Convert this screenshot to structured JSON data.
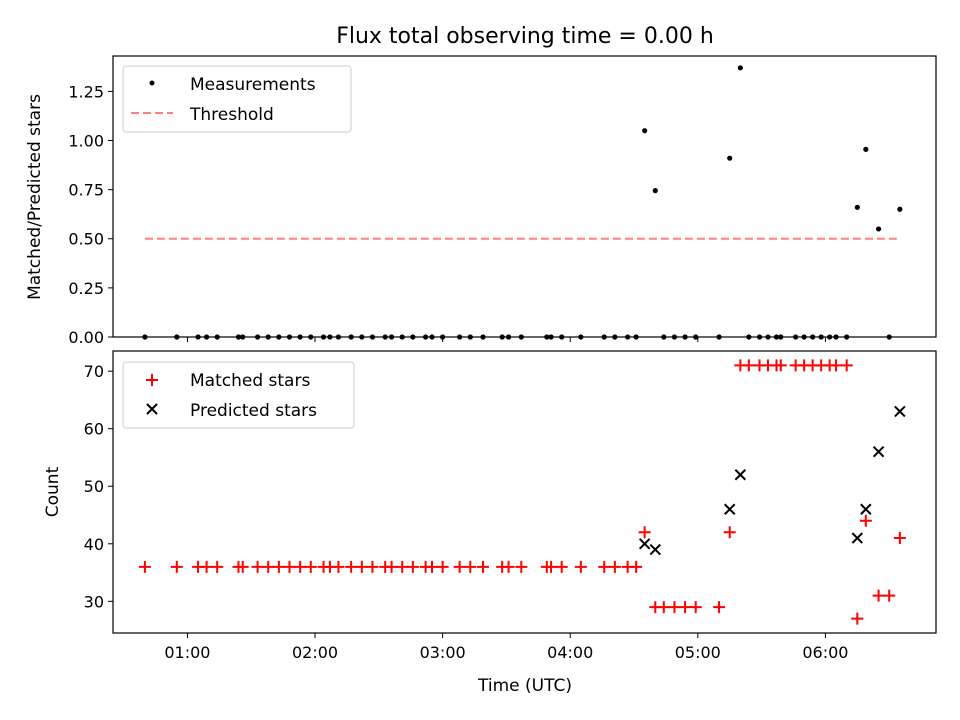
{
  "title": "Flux total observing time = 0.00 h",
  "colors": {
    "threshold": "#ff7f7f",
    "matched": "#ff0000",
    "predicted": "#000000",
    "measurement": "#000000"
  },
  "chart_data": [
    {
      "type": "scatter",
      "panel": "top",
      "ylabel": "Matched/Predicted stars",
      "ylim": [
        0,
        1.43
      ],
      "xlim": [
        "00:25",
        "06:52"
      ],
      "yticks": [
        "0.00",
        "0.25",
        "0.50",
        "0.75",
        "1.00",
        "1.25"
      ],
      "legend": "top-left",
      "series": [
        {
          "name": "Measurements",
          "marker": "dot",
          "points": [
            [
              "00:40",
              0
            ],
            [
              "00:55",
              0
            ],
            [
              "01:05",
              0
            ],
            [
              "01:09",
              0
            ],
            [
              "01:14",
              0
            ],
            [
              "01:24",
              0
            ],
            [
              "01:26",
              0
            ],
            [
              "01:33",
              0
            ],
            [
              "01:38",
              0
            ],
            [
              "01:43",
              0
            ],
            [
              "01:48",
              0
            ],
            [
              "01:53",
              0
            ],
            [
              "01:58",
              0
            ],
            [
              "02:04",
              0
            ],
            [
              "02:07",
              0
            ],
            [
              "02:11",
              0
            ],
            [
              "02:17",
              0
            ],
            [
              "02:22",
              0
            ],
            [
              "02:27",
              0
            ],
            [
              "02:33",
              0
            ],
            [
              "02:36",
              0
            ],
            [
              "02:41",
              0
            ],
            [
              "02:46",
              0
            ],
            [
              "02:52",
              0
            ],
            [
              "02:55",
              0
            ],
            [
              "03:00",
              0
            ],
            [
              "03:08",
              0
            ],
            [
              "03:13",
              0
            ],
            [
              "03:19",
              0
            ],
            [
              "03:28",
              0
            ],
            [
              "03:31",
              0
            ],
            [
              "03:37",
              0
            ],
            [
              "03:49",
              0
            ],
            [
              "03:51",
              0
            ],
            [
              "03:56",
              0
            ],
            [
              "04:05",
              0
            ],
            [
              "04:16",
              0
            ],
            [
              "04:21",
              0
            ],
            [
              "04:27",
              0
            ],
            [
              "04:31",
              0
            ],
            [
              "04:35",
              1.05
            ],
            [
              "04:40",
              0.745
            ],
            [
              "04:44",
              0
            ],
            [
              "04:49",
              0
            ],
            [
              "04:54",
              0
            ],
            [
              "04:59",
              0
            ],
            [
              "05:10",
              0
            ],
            [
              "05:15",
              0.91
            ],
            [
              "05:20",
              1.37
            ],
            [
              "05:24",
              0
            ],
            [
              "05:29",
              0
            ],
            [
              "05:33",
              0
            ],
            [
              "05:37",
              0
            ],
            [
              "05:39",
              0
            ],
            [
              "05:46",
              0
            ],
            [
              "05:50",
              0
            ],
            [
              "05:54",
              0
            ],
            [
              "05:58",
              0
            ],
            [
              "06:02",
              0
            ],
            [
              "06:05",
              0
            ],
            [
              "06:10",
              0
            ],
            [
              "06:15",
              0.66
            ],
            [
              "06:19",
              0.955
            ],
            [
              "06:25",
              0.55
            ],
            [
              "06:30",
              0
            ],
            [
              "06:35",
              0.65
            ]
          ]
        },
        {
          "name": "Threshold",
          "style": "dashed-line",
          "points": [
            [
              "00:40",
              0.5
            ],
            [
              "06:35",
              0.5
            ]
          ]
        }
      ]
    },
    {
      "type": "scatter",
      "panel": "bottom",
      "xlabel": "Time (UTC)",
      "ylabel": "Count",
      "ylim": [
        24.5,
        73.5
      ],
      "xlim": [
        "00:25",
        "06:52"
      ],
      "yticks": [
        "30",
        "40",
        "50",
        "60",
        "70"
      ],
      "xticks": [
        "01:00",
        "02:00",
        "03:00",
        "04:00",
        "05:00",
        "06:00"
      ],
      "legend": "top-left",
      "series": [
        {
          "name": "Matched stars",
          "marker": "plus",
          "points": [
            [
              "00:40",
              36
            ],
            [
              "00:55",
              36
            ],
            [
              "01:05",
              36
            ],
            [
              "01:09",
              36
            ],
            [
              "01:14",
              36
            ],
            [
              "01:24",
              36
            ],
            [
              "01:26",
              36
            ],
            [
              "01:33",
              36
            ],
            [
              "01:38",
              36
            ],
            [
              "01:43",
              36
            ],
            [
              "01:48",
              36
            ],
            [
              "01:53",
              36
            ],
            [
              "01:58",
              36
            ],
            [
              "02:04",
              36
            ],
            [
              "02:07",
              36
            ],
            [
              "02:11",
              36
            ],
            [
              "02:17",
              36
            ],
            [
              "02:22",
              36
            ],
            [
              "02:27",
              36
            ],
            [
              "02:33",
              36
            ],
            [
              "02:36",
              36
            ],
            [
              "02:41",
              36
            ],
            [
              "02:46",
              36
            ],
            [
              "02:52",
              36
            ],
            [
              "02:55",
              36
            ],
            [
              "03:00",
              36
            ],
            [
              "03:08",
              36
            ],
            [
              "03:13",
              36
            ],
            [
              "03:19",
              36
            ],
            [
              "03:28",
              36
            ],
            [
              "03:31",
              36
            ],
            [
              "03:37",
              36
            ],
            [
              "03:49",
              36
            ],
            [
              "03:51",
              36
            ],
            [
              "03:56",
              36
            ],
            [
              "04:05",
              36
            ],
            [
              "04:16",
              36
            ],
            [
              "04:21",
              36
            ],
            [
              "04:27",
              36
            ],
            [
              "04:31",
              36
            ],
            [
              "04:35",
              42
            ],
            [
              "04:40",
              29
            ],
            [
              "04:44",
              29
            ],
            [
              "04:49",
              29
            ],
            [
              "04:54",
              29
            ],
            [
              "04:59",
              29
            ],
            [
              "05:10",
              29
            ],
            [
              "05:15",
              42
            ],
            [
              "05:20",
              71
            ],
            [
              "05:24",
              71
            ],
            [
              "05:29",
              71
            ],
            [
              "05:33",
              71
            ],
            [
              "05:37",
              71
            ],
            [
              "05:39",
              71
            ],
            [
              "05:46",
              71
            ],
            [
              "05:50",
              71
            ],
            [
              "05:54",
              71
            ],
            [
              "05:58",
              71
            ],
            [
              "06:02",
              71
            ],
            [
              "06:05",
              71
            ],
            [
              "06:10",
              71
            ],
            [
              "06:15",
              27
            ],
            [
              "06:19",
              44
            ],
            [
              "06:25",
              31
            ],
            [
              "06:30",
              31
            ],
            [
              "06:35",
              41
            ]
          ]
        },
        {
          "name": "Predicted stars",
          "marker": "x",
          "points": [
            [
              "04:35",
              40
            ],
            [
              "04:40",
              39
            ],
            [
              "05:15",
              46
            ],
            [
              "05:20",
              52
            ],
            [
              "06:15",
              41
            ],
            [
              "06:19",
              46
            ],
            [
              "06:25",
              56
            ],
            [
              "06:35",
              63
            ]
          ]
        }
      ]
    }
  ]
}
